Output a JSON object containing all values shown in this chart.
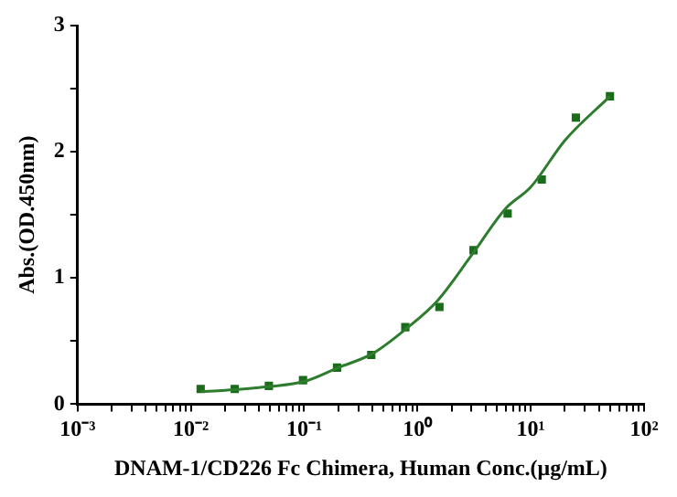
{
  "chart_data": {
    "type": "scatter",
    "xlabel": "DNAM-1/CD226 Fc Chimera, Human Conc.(μg/mL)",
    "ylabel": "Abs.(OD.450nm)",
    "log": "x",
    "xlim": [
      0.001,
      100
    ],
    "xticks": [
      {
        "value": 0.001,
        "label": "10⁻³"
      },
      {
        "value": 0.002,
        "label": null
      },
      {
        "value": 0.003,
        "label": null
      },
      {
        "value": 0.004,
        "label": null
      },
      {
        "value": 0.005,
        "label": null
      },
      {
        "value": 0.006,
        "label": null
      },
      {
        "value": 0.007,
        "label": null
      },
      {
        "value": 0.008,
        "label": null
      },
      {
        "value": 0.009,
        "label": null
      },
      {
        "value": 0.01,
        "label": "10⁻²"
      },
      {
        "value": 0.02,
        "label": null
      },
      {
        "value": 0.03,
        "label": null
      },
      {
        "value": 0.04,
        "label": null
      },
      {
        "value": 0.05,
        "label": null
      },
      {
        "value": 0.06,
        "label": null
      },
      {
        "value": 0.07,
        "label": null
      },
      {
        "value": 0.08,
        "label": null
      },
      {
        "value": 0.09,
        "label": null
      },
      {
        "value": 0.1,
        "label": "10⁻¹"
      },
      {
        "value": 0.2,
        "label": null
      },
      {
        "value": 0.3,
        "label": null
      },
      {
        "value": 0.4,
        "label": null
      },
      {
        "value": 0.5,
        "label": null
      },
      {
        "value": 0.6,
        "label": null
      },
      {
        "value": 0.7,
        "label": null
      },
      {
        "value": 0.8,
        "label": null
      },
      {
        "value": 0.9,
        "label": null
      },
      {
        "value": 1,
        "label": "10⁰"
      },
      {
        "value": 2,
        "label": null
      },
      {
        "value": 3,
        "label": null
      },
      {
        "value": 4,
        "label": null
      },
      {
        "value": 5,
        "label": null
      },
      {
        "value": 6,
        "label": null
      },
      {
        "value": 7,
        "label": null
      },
      {
        "value": 8,
        "label": null
      },
      {
        "value": 9,
        "label": null
      },
      {
        "value": 10,
        "label": "10¹"
      },
      {
        "value": 20,
        "label": null
      },
      {
        "value": 30,
        "label": null
      },
      {
        "value": 40,
        "label": null
      },
      {
        "value": 50,
        "label": null
      },
      {
        "value": 60,
        "label": null
      },
      {
        "value": 70,
        "label": null
      },
      {
        "value": 80,
        "label": null
      },
      {
        "value": 90,
        "label": null
      },
      {
        "value": 100,
        "label": "10²"
      }
    ],
    "ylim": [
      0,
      3
    ],
    "yticks": [
      0,
      {
        "value": 0.5,
        "label": null
      },
      1,
      {
        "value": 1.5,
        "label": null
      },
      2,
      {
        "value": 2.5,
        "label": null
      },
      3
    ],
    "grid": false,
    "legend": false,
    "marker": "square",
    "series": [
      {
        "color": "#1a6b1a",
        "x": [
          0.0122,
          0.0244,
          0.0488,
          0.0977,
          0.195,
          0.391,
          0.781,
          1.5625,
          3.125,
          6.25,
          12.5,
          25,
          50
        ],
        "values": [
          0.12,
          0.12,
          0.145,
          0.19,
          0.29,
          0.39,
          0.61,
          0.77,
          1.22,
          1.51,
          1.78,
          2.27,
          2.44
        ]
      },
      {
        "type": "line",
        "marker": "none",
        "color": "#2e7d2e",
        "x": [
          0.0122,
          0.02,
          0.05,
          0.1,
          0.2,
          0.4,
          0.8,
          1.5,
          3,
          6,
          10,
          20,
          50
        ],
        "values": [
          0.1,
          0.11,
          0.14,
          0.18,
          0.29,
          0.4,
          0.6,
          0.82,
          1.18,
          1.55,
          1.72,
          2.09,
          2.44
        ]
      }
    ]
  }
}
